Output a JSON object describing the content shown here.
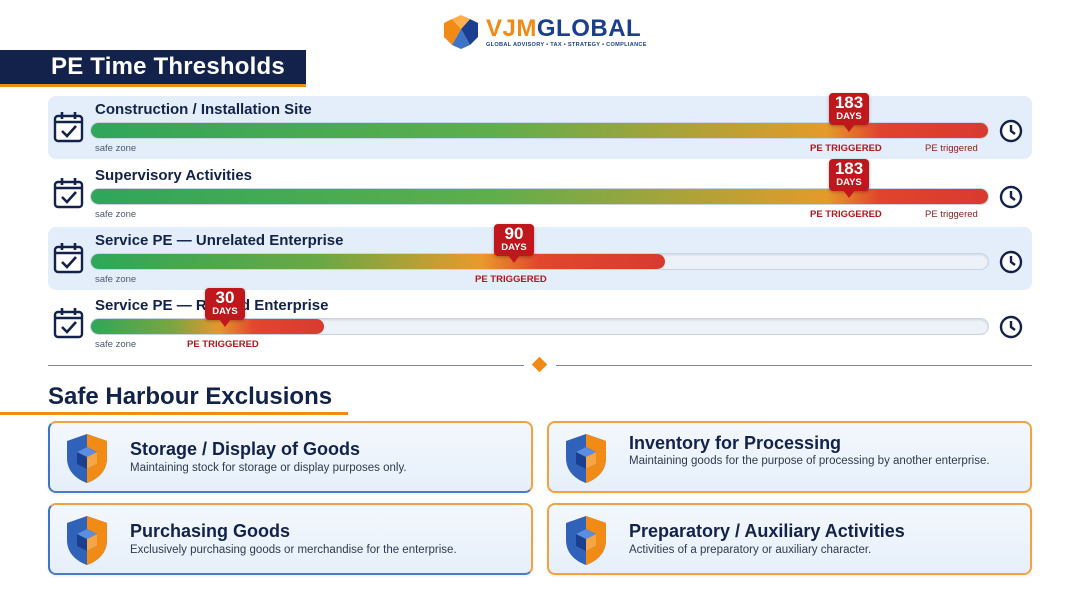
{
  "logo": {
    "name_part1": "VJM",
    "name_part2": "GLOBAL",
    "tagline": "GLOBAL ADVISORY • TAX • STRATEGY • COMPLIANCE"
  },
  "thresholds_section": {
    "title": "PE Time Thresholds",
    "rows": [
      {
        "label": "Construction / Installation Site",
        "days": "183",
        "days_unit": "DAYS",
        "triggered_label": "PE TRIGGERED",
        "safe_label": "safe zone",
        "end_label": "PE triggered",
        "fill_fraction": 1.0
      },
      {
        "label": "Supervisory Activities",
        "days": "183",
        "days_unit": "DAYS",
        "triggered_label": "PE TRIGGERED",
        "safe_label": "safe zone",
        "end_label": "PE triggered",
        "fill_fraction": 1.0
      },
      {
        "label": "Service PE — Unrelated Enterprise",
        "days": "90",
        "days_unit": "DAYS",
        "triggered_label": "PE TRIGGERED",
        "safe_label": "safe zone",
        "fill_fraction": 0.64
      },
      {
        "label": "Service PE — Related Enterprise",
        "days": "30",
        "days_unit": "DAYS",
        "triggered_label": "PE TRIGGERED",
        "safe_label": "safe zone",
        "fill_fraction": 0.26
      }
    ]
  },
  "exclusions_section": {
    "title": "Safe Harbour Exclusions",
    "cards": [
      {
        "title": "Storage / Display of Goods",
        "desc": "Maintaining stock for storage or display purposes only."
      },
      {
        "title": "Inventory for Processing",
        "desc": "Maintaining goods for the purpose of processing by another enterprise."
      },
      {
        "title": "Purchasing Goods",
        "desc": "Exclusively purchasing goods or merchandise for the enterprise."
      },
      {
        "title": "Preparatory / Auxiliary Activities",
        "desc": "Activities of a preparatory or auxiliary character."
      }
    ]
  },
  "colors": {
    "navy": "#13224a",
    "orange": "#f28a16",
    "trigger_red": "#c0171c",
    "safe_green": "#2fa65a"
  }
}
